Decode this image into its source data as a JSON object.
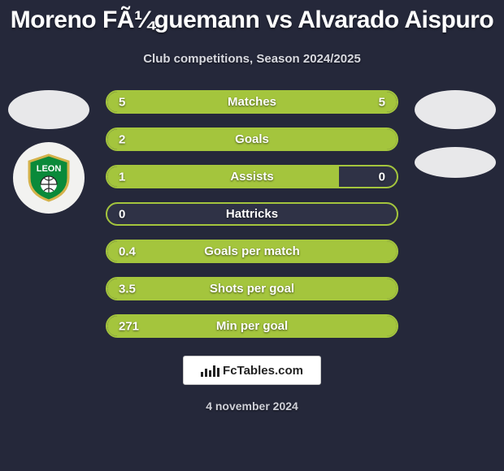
{
  "background_color": "#25283a",
  "accent_color": "#a4c53d",
  "track_color": "#2f3246",
  "text_color": "#ffffff",
  "title": "Moreno FÃ¼guemann vs Alvarado Aispuro",
  "subtitle": "Club competitions, Season 2024/2025",
  "footer_brand": "FcTables.com",
  "date": "4 november 2024",
  "rows": [
    {
      "label": "Matches",
      "left": "5",
      "right": "5",
      "fill_left_pct": 50,
      "fill_right_pct": 50
    },
    {
      "label": "Goals",
      "left": "2",
      "right": "",
      "fill_left_pct": 100,
      "fill_right_pct": 0
    },
    {
      "label": "Assists",
      "left": "1",
      "right": "0",
      "fill_left_pct": 80,
      "fill_right_pct": 0
    },
    {
      "label": "Hattricks",
      "left": "0",
      "right": "",
      "fill_left_pct": 0,
      "fill_right_pct": 0
    },
    {
      "label": "Goals per match",
      "left": "0.4",
      "right": "",
      "fill_left_pct": 100,
      "fill_right_pct": 0
    },
    {
      "label": "Shots per goal",
      "left": "3.5",
      "right": "",
      "fill_left_pct": 100,
      "fill_right_pct": 0
    },
    {
      "label": "Min per goal",
      "left": "271",
      "right": "",
      "fill_left_pct": 100,
      "fill_right_pct": 0
    }
  ]
}
